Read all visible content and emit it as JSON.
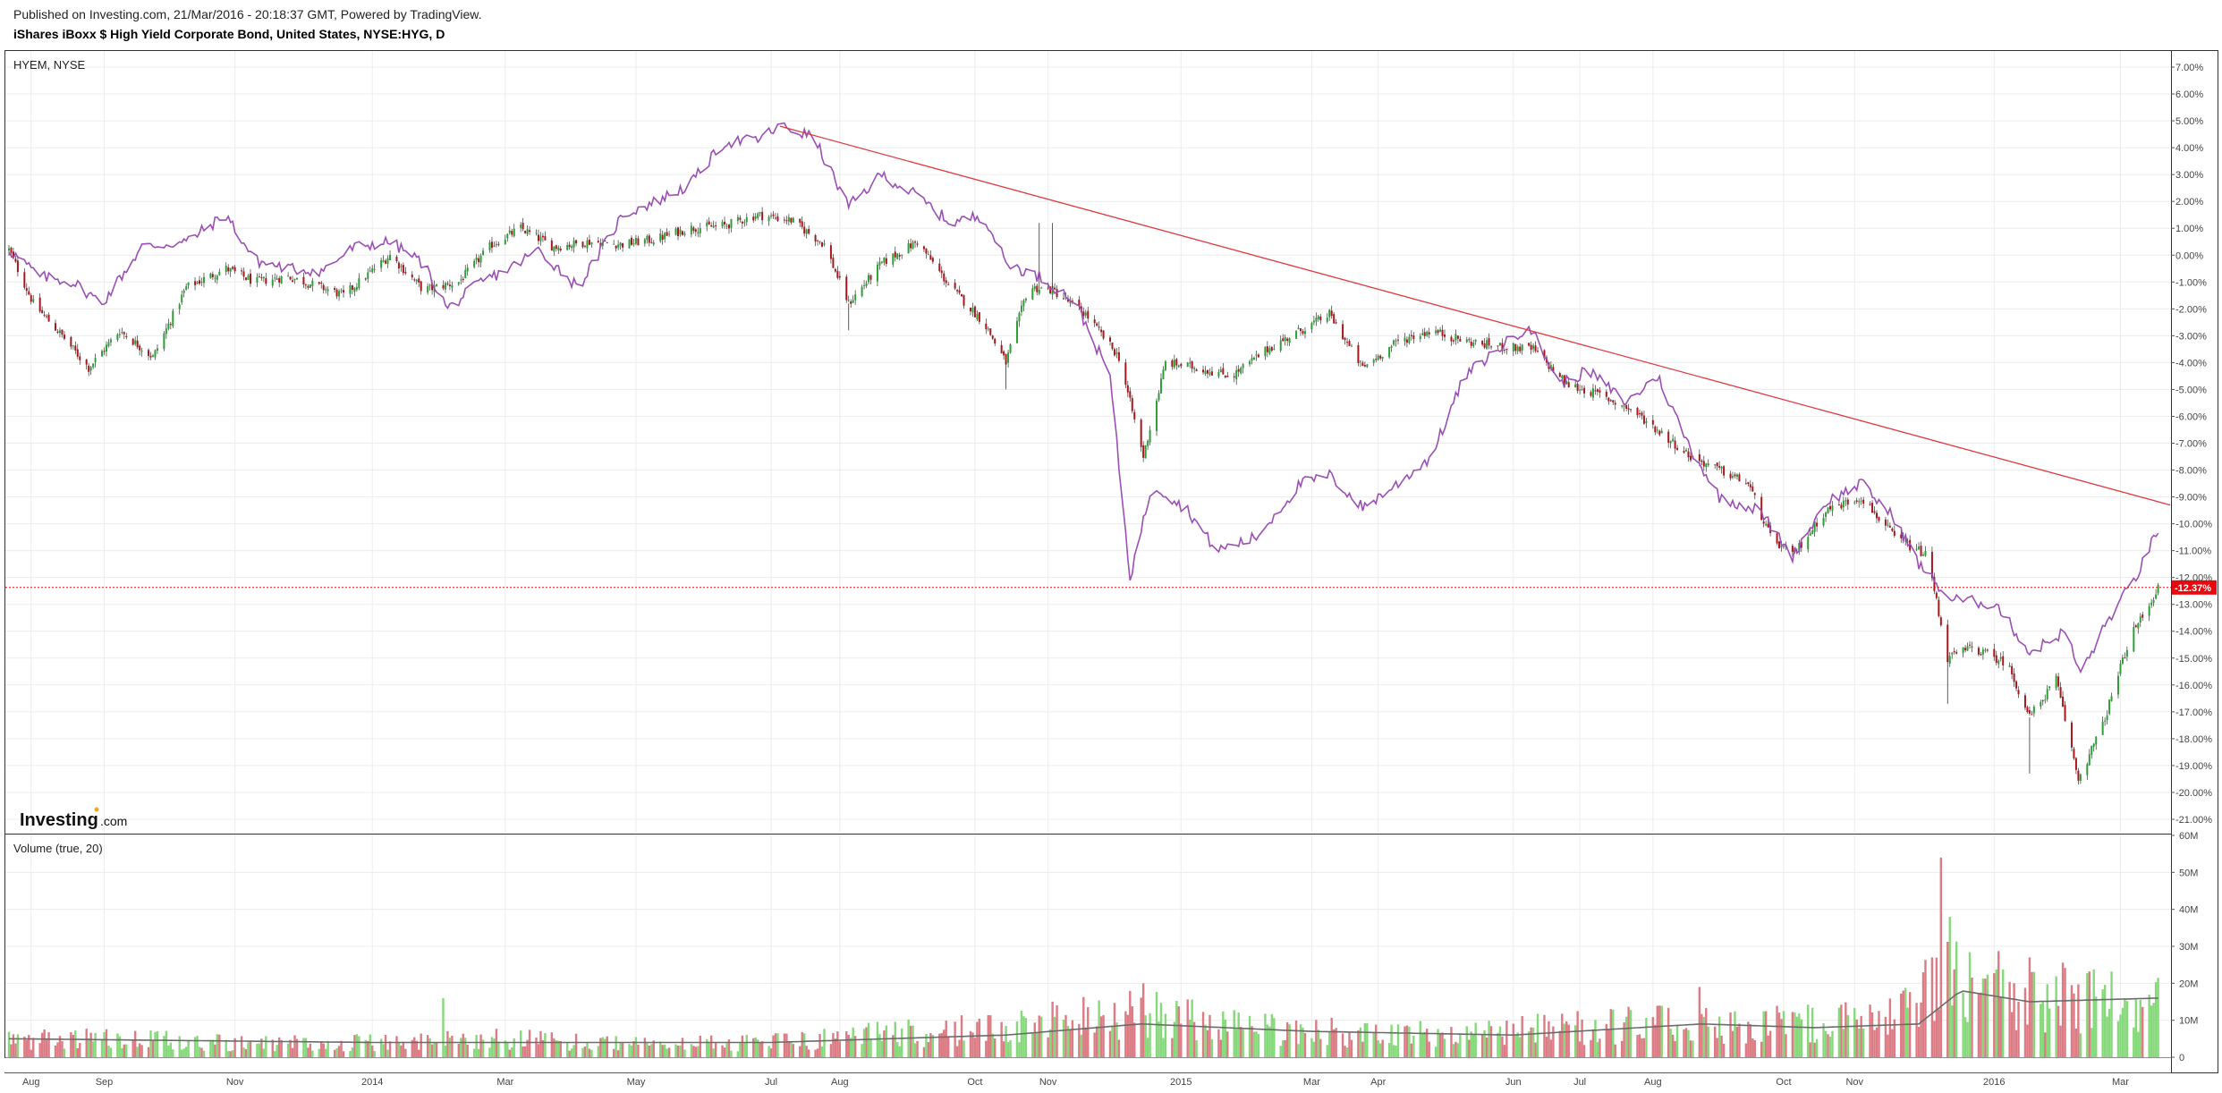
{
  "header": {
    "published": "Published on Investing.com, 21/Mar/2016 - 20:18:37 GMT, Powered by TradingView.",
    "title": "iShares iBoxx $ High Yield Corporate Bond, United States, NYSE:HYG, D"
  },
  "main_pane": {
    "compare_label": "HYEM, NYSE",
    "last_value_label": "-12.37%",
    "logo_text": "Investing",
    "logo_suffix": ".com"
  },
  "volume_pane": {
    "label": "Volume (true, 20)"
  },
  "colors": {
    "up": "#2e9e37",
    "down": "#a8171c",
    "compare_line": "#9b4fb5",
    "trend_line": "#e0393e",
    "last_price": "#e8090f",
    "vol_up": "#86d97a",
    "vol_down": "#dc7b84",
    "vol_ma": "#6b6b6b",
    "grid": "#ececec"
  },
  "chart_data": [
    {
      "type": "candlestick+line",
      "x_ticks": [
        "Aug",
        "Sep",
        "Nov",
        "2014",
        "Mar",
        "May",
        "Jul",
        "Aug",
        "Oct",
        "Nov",
        "2015",
        "Mar",
        "Apr",
        "Jun",
        "Jul",
        "Aug",
        "Oct",
        "Nov",
        "2016",
        "Mar"
      ],
      "y_ticks": [
        "7.00%",
        "6.00%",
        "5.00%",
        "4.00%",
        "3.00%",
        "2.00%",
        "1.00%",
        "0.00%",
        "-1.00%",
        "-2.00%",
        "-3.00%",
        "-4.00%",
        "-5.00%",
        "-6.00%",
        "-7.00%",
        "-8.00%",
        "-9.00%",
        "-10.00%",
        "-11.00%",
        "-12.00%",
        "-13.00%",
        "-14.00%",
        "-15.00%",
        "-16.00%",
        "-17.00%",
        "-18.00%",
        "-19.00%",
        "-20.00%",
        "-21.00%"
      ],
      "ylim": [
        -21.5,
        7.6
      ],
      "hyg_path": [
        {
          "date": "2013-07-22",
          "value": 0.2
        },
        {
          "date": "2013-08-02",
          "value": -1.8
        },
        {
          "date": "2013-08-15",
          "value": -3.0
        },
        {
          "date": "2013-08-27",
          "value": -4.2
        },
        {
          "date": "2013-09-10",
          "value": -2.8
        },
        {
          "date": "2013-09-25",
          "value": -3.8
        },
        {
          "date": "2013-10-10",
          "value": -1.2
        },
        {
          "date": "2013-10-28",
          "value": -0.5
        },
        {
          "date": "2013-11-10",
          "value": -1.0
        },
        {
          "date": "2013-11-25",
          "value": -0.8
        },
        {
          "date": "2013-12-10",
          "value": -1.2
        },
        {
          "date": "2013-12-20",
          "value": -1.5
        },
        {
          "date": "2014-01-10",
          "value": 0.0
        },
        {
          "date": "2014-01-25",
          "value": -1.3
        },
        {
          "date": "2014-02-10",
          "value": -1.0
        },
        {
          "date": "2014-02-25",
          "value": 0.4
        },
        {
          "date": "2014-03-10",
          "value": 1.0
        },
        {
          "date": "2014-03-25",
          "value": 0.3
        },
        {
          "date": "2014-04-10",
          "value": 0.5
        },
        {
          "date": "2014-04-25",
          "value": 0.4
        },
        {
          "date": "2014-05-10",
          "value": 0.6
        },
        {
          "date": "2014-05-25",
          "value": 1.0
        },
        {
          "date": "2014-06-10",
          "value": 1.1
        },
        {
          "date": "2014-06-25",
          "value": 1.5
        },
        {
          "date": "2014-07-10",
          "value": 1.3
        },
        {
          "date": "2014-07-25",
          "value": 0.4
        },
        {
          "date": "2014-08-05",
          "value": -1.8
        },
        {
          "date": "2014-08-20",
          "value": -0.3
        },
        {
          "date": "2014-09-05",
          "value": 0.5
        },
        {
          "date": "2014-09-20",
          "value": -1.2
        },
        {
          "date": "2014-10-05",
          "value": -2.5
        },
        {
          "date": "2014-10-15",
          "value": -4.0
        },
        {
          "date": "2014-10-25",
          "value": -1.2
        },
        {
          "date": "2014-11-05",
          "value": -1.3
        },
        {
          "date": "2014-11-20",
          "value": -2.2
        },
        {
          "date": "2014-12-05",
          "value": -3.8
        },
        {
          "date": "2014-12-16",
          "value": -7.5
        },
        {
          "date": "2014-12-26",
          "value": -4.0
        },
        {
          "date": "2015-01-10",
          "value": -4.2
        },
        {
          "date": "2015-01-25",
          "value": -4.5
        },
        {
          "date": "2015-02-10",
          "value": -3.5
        },
        {
          "date": "2015-02-25",
          "value": -2.8
        },
        {
          "date": "2015-03-10",
          "value": -2.2
        },
        {
          "date": "2015-03-25",
          "value": -4.2
        },
        {
          "date": "2015-04-10",
          "value": -3.2
        },
        {
          "date": "2015-04-25",
          "value": -2.8
        },
        {
          "date": "2015-05-10",
          "value": -3.2
        },
        {
          "date": "2015-05-25",
          "value": -3.4
        },
        {
          "date": "2015-06-10",
          "value": -3.5
        },
        {
          "date": "2015-06-25",
          "value": -4.8
        },
        {
          "date": "2015-07-10",
          "value": -5.2
        },
        {
          "date": "2015-07-25",
          "value": -5.8
        },
        {
          "date": "2015-08-05",
          "value": -6.5
        },
        {
          "date": "2015-08-20",
          "value": -7.5
        },
        {
          "date": "2015-09-02",
          "value": -8.0
        },
        {
          "date": "2015-09-15",
          "value": -8.5
        },
        {
          "date": "2015-09-25",
          "value": -10.5
        },
        {
          "date": "2015-10-05",
          "value": -11.2
        },
        {
          "date": "2015-10-20",
          "value": -9.5
        },
        {
          "date": "2015-11-05",
          "value": -9.0
        },
        {
          "date": "2015-11-20",
          "value": -10.5
        },
        {
          "date": "2015-12-05",
          "value": -11.2
        },
        {
          "date": "2015-12-14",
          "value": -15.0
        },
        {
          "date": "2015-12-25",
          "value": -14.6
        },
        {
          "date": "2016-01-10",
          "value": -15.2
        },
        {
          "date": "2016-01-20",
          "value": -17.2
        },
        {
          "date": "2016-02-01",
          "value": -15.8
        },
        {
          "date": "2016-02-11",
          "value": -19.5
        },
        {
          "date": "2016-02-22",
          "value": -17.5
        },
        {
          "date": "2016-03-05",
          "value": -14.3
        },
        {
          "date": "2016-03-18",
          "value": -12.4
        }
      ],
      "hyem_path": [
        {
          "date": "2013-07-22",
          "value": 0.2
        },
        {
          "date": "2013-08-05",
          "value": -0.8
        },
        {
          "date": "2013-08-20",
          "value": -1.0
        },
        {
          "date": "2013-09-02",
          "value": -1.8
        },
        {
          "date": "2013-09-20",
          "value": 0.3
        },
        {
          "date": "2013-10-10",
          "value": 0.5
        },
        {
          "date": "2013-10-28",
          "value": 1.5
        },
        {
          "date": "2013-11-10",
          "value": -0.2
        },
        {
          "date": "2013-11-25",
          "value": -0.5
        },
        {
          "date": "2013-12-10",
          "value": -0.6
        },
        {
          "date": "2013-12-25",
          "value": 0.3
        },
        {
          "date": "2014-01-10",
          "value": 0.5
        },
        {
          "date": "2014-01-25",
          "value": -0.3
        },
        {
          "date": "2014-02-05",
          "value": -2.0
        },
        {
          "date": "2014-02-20",
          "value": -1.0
        },
        {
          "date": "2014-03-05",
          "value": -0.5
        },
        {
          "date": "2014-03-18",
          "value": 0.2
        },
        {
          "date": "2014-04-05",
          "value": -1.2
        },
        {
          "date": "2014-04-25",
          "value": 1.5
        },
        {
          "date": "2014-05-10",
          "value": 2.0
        },
        {
          "date": "2014-05-25",
          "value": 2.6
        },
        {
          "date": "2014-06-10",
          "value": 4.2
        },
        {
          "date": "2014-06-25",
          "value": 4.3
        },
        {
          "date": "2014-07-05",
          "value": 4.8
        },
        {
          "date": "2014-07-20",
          "value": 4.4
        },
        {
          "date": "2014-08-05",
          "value": 1.8
        },
        {
          "date": "2014-08-20",
          "value": 3.0
        },
        {
          "date": "2014-09-05",
          "value": 2.2
        },
        {
          "date": "2014-09-20",
          "value": 1.2
        },
        {
          "date": "2014-10-05",
          "value": 1.5
        },
        {
          "date": "2014-10-15",
          "value": -0.3
        },
        {
          "date": "2014-10-30",
          "value": -0.8
        },
        {
          "date": "2014-11-15",
          "value": -1.7
        },
        {
          "date": "2014-12-01",
          "value": -4.5
        },
        {
          "date": "2014-12-10",
          "value": -12.0
        },
        {
          "date": "2014-12-20",
          "value": -8.5
        },
        {
          "date": "2015-01-05",
          "value": -9.5
        },
        {
          "date": "2015-01-18",
          "value": -11.0
        },
        {
          "date": "2015-02-05",
          "value": -10.5
        },
        {
          "date": "2015-02-25",
          "value": -8.5
        },
        {
          "date": "2015-03-10",
          "value": -8.2
        },
        {
          "date": "2015-03-25",
          "value": -9.4
        },
        {
          "date": "2015-04-10",
          "value": -8.5
        },
        {
          "date": "2015-04-25",
          "value": -7.5
        },
        {
          "date": "2015-05-10",
          "value": -4.5
        },
        {
          "date": "2015-05-25",
          "value": -3.5
        },
        {
          "date": "2015-06-08",
          "value": -2.6
        },
        {
          "date": "2015-06-22",
          "value": -4.8
        },
        {
          "date": "2015-07-05",
          "value": -4.3
        },
        {
          "date": "2015-07-22",
          "value": -5.5
        },
        {
          "date": "2015-08-05",
          "value": -4.5
        },
        {
          "date": "2015-08-20",
          "value": -7.2
        },
        {
          "date": "2015-09-02",
          "value": -9.0
        },
        {
          "date": "2015-09-20",
          "value": -9.5
        },
        {
          "date": "2015-10-05",
          "value": -11.2
        },
        {
          "date": "2015-10-20",
          "value": -9.2
        },
        {
          "date": "2015-11-05",
          "value": -8.5
        },
        {
          "date": "2015-11-20",
          "value": -9.8
        },
        {
          "date": "2015-12-01",
          "value": -11.5
        },
        {
          "date": "2015-12-15",
          "value": -12.8
        },
        {
          "date": "2016-01-05",
          "value": -13.0
        },
        {
          "date": "2016-01-20",
          "value": -14.8
        },
        {
          "date": "2016-02-05",
          "value": -14.0
        },
        {
          "date": "2016-02-12",
          "value": -15.6
        },
        {
          "date": "2016-02-25",
          "value": -13.5
        },
        {
          "date": "2016-03-08",
          "value": -12.0
        },
        {
          "date": "2016-03-18",
          "value": -10.2
        }
      ],
      "trend_line": [
        {
          "date": "2014-07-05",
          "value": 4.8
        },
        {
          "date": "2016-03-21",
          "value": -9.3
        }
      ],
      "last_value": -12.37
    },
    {
      "type": "bar",
      "name": "Volume (true, 20)",
      "y_ticks": [
        "60M",
        "50M",
        "40M",
        "30M",
        "20M",
        "10M",
        "0"
      ],
      "ylim": [
        0,
        60
      ],
      "volume_path": [
        {
          "date": "2013-07-22",
          "value": 5
        },
        {
          "date": "2013-09-01",
          "value": 5
        },
        {
          "date": "2013-11-01",
          "value": 4
        },
        {
          "date": "2014-01-01",
          "value": 4
        },
        {
          "date": "2014-03-01",
          "value": 5
        },
        {
          "date": "2014-05-01",
          "value": 3.5
        },
        {
          "date": "2014-07-01",
          "value": 4
        },
        {
          "date": "2014-08-15",
          "value": 6
        },
        {
          "date": "2014-10-15",
          "value": 8
        },
        {
          "date": "2014-12-10",
          "value": 12
        },
        {
          "date": "2015-02-01",
          "value": 8
        },
        {
          "date": "2015-04-01",
          "value": 6
        },
        {
          "date": "2015-06-01",
          "value": 7
        },
        {
          "date": "2015-08-05",
          "value": 9
        },
        {
          "date": "2015-10-01",
          "value": 9
        },
        {
          "date": "2015-11-20",
          "value": 10
        },
        {
          "date": "2015-12-11",
          "value": 25
        },
        {
          "date": "2016-01-15",
          "value": 17
        },
        {
          "date": "2016-03-18",
          "value": 14
        }
      ],
      "volume_spikes": [
        {
          "date": "2015-12-11",
          "value": 54
        },
        {
          "date": "2015-12-15",
          "value": 38
        },
        {
          "date": "2015-12-07",
          "value": 27
        },
        {
          "date": "2014-12-16",
          "value": 20
        },
        {
          "date": "2016-01-20",
          "value": 27
        },
        {
          "date": "2015-08-24",
          "value": 19
        },
        {
          "date": "2014-02-03",
          "value": 16
        }
      ],
      "ma_path": [
        {
          "date": "2013-07-22",
          "value": 5
        },
        {
          "date": "2014-01-01",
          "value": 4
        },
        {
          "date": "2014-07-01",
          "value": 4
        },
        {
          "date": "2014-10-15",
          "value": 6
        },
        {
          "date": "2014-12-15",
          "value": 9
        },
        {
          "date": "2015-03-01",
          "value": 7
        },
        {
          "date": "2015-06-01",
          "value": 6
        },
        {
          "date": "2015-08-25",
          "value": 9
        },
        {
          "date": "2015-10-15",
          "value": 8
        },
        {
          "date": "2015-12-01",
          "value": 9
        },
        {
          "date": "2015-12-20",
          "value": 18
        },
        {
          "date": "2016-01-20",
          "value": 15
        },
        {
          "date": "2016-03-18",
          "value": 16
        }
      ]
    }
  ]
}
